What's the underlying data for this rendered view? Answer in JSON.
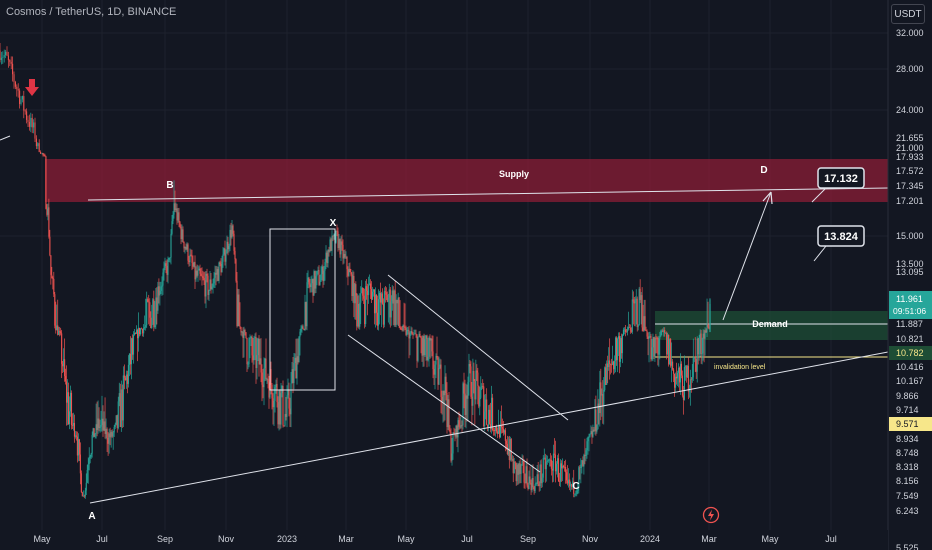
{
  "header": {
    "title": "Cosmos / TetherUS, 1D, BINANCE",
    "currency": "USDT"
  },
  "colors": {
    "background": "#131722",
    "up": "#26a69a",
    "down": "#ef5350",
    "supply_zone": "#8b1e35",
    "demand_zone": "#1e4d35",
    "trendline": "#e0e3eb",
    "invalidation": "#f7e78a",
    "current_price": "#26a69a",
    "highlight_price": "#f7e78a"
  },
  "chart_data": {
    "type": "candlestick",
    "symbol": "Cosmos / TetherUS",
    "interval": "1D",
    "exchange": "BINANCE",
    "scale": "log",
    "y_axis_labels": [
      "32.000",
      "28.000",
      "24.000",
      "21.655",
      "21.000",
      "17.933",
      "17.572",
      "17.345",
      "17.201",
      "15.000",
      "13.500",
      "13.095",
      "11.887",
      "10.821",
      "10.416",
      "10.167",
      "9.866",
      "9.714",
      "8.934",
      "8.748",
      "8.318",
      "8.156",
      "7.549",
      "6.243",
      "5.525"
    ],
    "x_axis_labels": [
      "May",
      "Jul",
      "Sep",
      "Nov",
      "2023",
      "Mar",
      "May",
      "Jul",
      "Sep",
      "Nov",
      "2024",
      "Mar",
      "May",
      "Jul"
    ],
    "highlighted_prices": [
      {
        "value": "11.961",
        "sub": "09:51:06",
        "kind": "current"
      },
      {
        "value": "10.782",
        "kind": "invalidation"
      },
      {
        "value": "9.571",
        "kind": "marker"
      }
    ],
    "series_path": [
      [
        "2022-04-01",
        30.0
      ],
      [
        "2022-04-06",
        29.0
      ],
      [
        "2022-04-12",
        26.5
      ],
      [
        "2022-04-20",
        23.5
      ],
      [
        "2022-04-26",
        22.0
      ],
      [
        "2022-05-02",
        18.5
      ],
      [
        "2022-05-07",
        16.5
      ],
      [
        "2022-05-10",
        13.0
      ],
      [
        "2022-05-14",
        12.0
      ],
      [
        "2022-05-25",
        10.0
      ],
      [
        "2022-06-05",
        9.2
      ],
      [
        "2022-06-12",
        7.5
      ],
      [
        "2022-06-18",
        8.8
      ],
      [
        "2022-06-28",
        9.5
      ],
      [
        "2022-07-10",
        9.0
      ],
      [
        "2022-07-25",
        10.2
      ],
      [
        "2022-08-08",
        11.5
      ],
      [
        "2022-08-20",
        12.0
      ],
      [
        "2022-09-05",
        13.5
      ],
      [
        "2022-09-10",
        17.0
      ],
      [
        "2022-09-18",
        15.0
      ],
      [
        "2022-10-01",
        13.0
      ],
      [
        "2022-10-15",
        12.5
      ],
      [
        "2022-10-28",
        13.5
      ],
      [
        "2022-11-07",
        15.5
      ],
      [
        "2022-11-12",
        12.0
      ],
      [
        "2022-11-22",
        10.8
      ],
      [
        "2022-12-05",
        10.5
      ],
      [
        "2022-12-20",
        10.0
      ],
      [
        "2023-01-01",
        9.6
      ],
      [
        "2023-01-12",
        10.8
      ],
      [
        "2023-01-22",
        12.5
      ],
      [
        "2023-02-05",
        13.0
      ],
      [
        "2023-02-12",
        14.4
      ],
      [
        "2023-02-20",
        14.9
      ],
      [
        "2023-03-01",
        13.5
      ],
      [
        "2023-03-12",
        12.0
      ],
      [
        "2023-03-25",
        12.5
      ],
      [
        "2023-04-05",
        12.0
      ],
      [
        "2023-04-18",
        12.3
      ],
      [
        "2023-04-28",
        11.4
      ],
      [
        "2023-05-10",
        11.0
      ],
      [
        "2023-05-25",
        10.6
      ],
      [
        "2023-06-10",
        10.0
      ],
      [
        "2023-06-15",
        8.8
      ],
      [
        "2023-06-22",
        9.4
      ],
      [
        "2023-07-02",
        10.2
      ],
      [
        "2023-07-15",
        9.9
      ],
      [
        "2023-07-28",
        9.5
      ],
      [
        "2023-08-10",
        9.0
      ],
      [
        "2023-08-18",
        8.3
      ],
      [
        "2023-08-28",
        8.2
      ],
      [
        "2023-09-08",
        7.95
      ],
      [
        "2023-09-18",
        8.4
      ],
      [
        "2023-09-28",
        8.5
      ],
      [
        "2023-10-08",
        8.0
      ],
      [
        "2023-10-17",
        7.85
      ],
      [
        "2023-10-28",
        8.6
      ],
      [
        "2023-11-10",
        9.8
      ],
      [
        "2023-11-20",
        10.4
      ],
      [
        "2023-12-01",
        10.9
      ],
      [
        "2023-12-12",
        11.6
      ],
      [
        "2023-12-22",
        12.2
      ],
      [
        "2024-01-03",
        10.6
      ],
      [
        "2024-01-15",
        11.2
      ],
      [
        "2024-01-25",
        10.3
      ],
      [
        "2024-02-05",
        10.1
      ],
      [
        "2024-02-15",
        10.5
      ],
      [
        "2024-02-25",
        11.2
      ],
      [
        "2024-03-02",
        11.961
      ]
    ],
    "zones": [
      {
        "label": "Supply",
        "from": 17.201,
        "to": 17.933
      },
      {
        "label": "Demand",
        "from": 10.821,
        "to": 11.887
      }
    ],
    "invalidation": {
      "label": "invalidation level",
      "price": 10.782
    },
    "wave_labels": [
      {
        "label": "A",
        "date": "2022-06-12",
        "price": 7.5
      },
      {
        "label": "B",
        "date": "2022-09-10",
        "price": 17.0
      },
      {
        "label": "X",
        "date": "2023-02-20",
        "price": 14.9
      },
      {
        "label": "C",
        "date": "2023-10-17",
        "price": 7.85
      },
      {
        "label": "D",
        "date": "2024-05-01",
        "price": 17.6
      }
    ],
    "targets": [
      {
        "value": "17.132"
      },
      {
        "value": "13.824"
      }
    ]
  }
}
